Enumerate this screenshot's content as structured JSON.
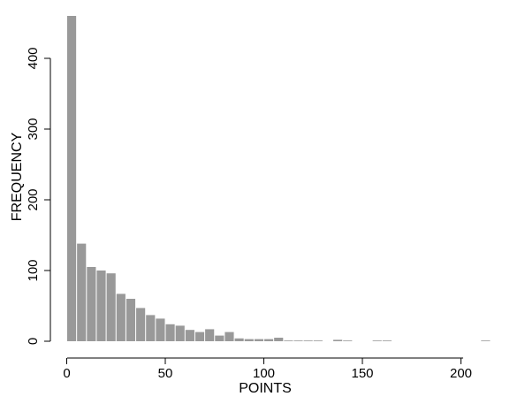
{
  "chart_data": {
    "type": "bar",
    "title": "",
    "xlabel": "POINTS",
    "ylabel": "FREQUENCY",
    "bar_color": "#999999",
    "bin_width": 5,
    "xlim": [
      0,
      215
    ],
    "ylim": [
      0,
      460
    ],
    "xticks": [
      0,
      50,
      100,
      150,
      200
    ],
    "yticks": [
      0,
      100,
      200,
      300,
      400
    ],
    "grid": false,
    "bins_start": [
      0,
      5,
      10,
      15,
      20,
      25,
      30,
      35,
      40,
      45,
      50,
      55,
      60,
      65,
      70,
      75,
      80,
      85,
      90,
      95,
      100,
      105,
      110,
      115,
      120,
      125,
      130,
      135,
      140,
      145,
      150,
      155,
      160,
      165,
      170,
      175,
      180,
      185,
      190,
      195,
      200,
      205,
      210
    ],
    "values": [
      460,
      138,
      105,
      100,
      96,
      67,
      60,
      47,
      37,
      32,
      24,
      22,
      16,
      13,
      17,
      8,
      13,
      4,
      3,
      3,
      3,
      5,
      1,
      1,
      1,
      1,
      0,
      2,
      1,
      0,
      0,
      1,
      1,
      0,
      0,
      0,
      0,
      0,
      0,
      0,
      0,
      0,
      1
    ]
  }
}
